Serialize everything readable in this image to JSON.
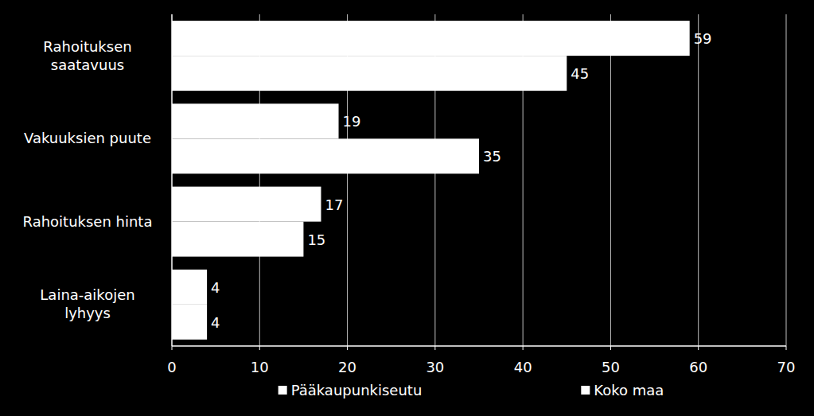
{
  "chart_data": {
    "type": "bar",
    "orientation": "horizontal",
    "categories": [
      "Rahoituksen\nsaatavuus",
      "Vakuuksien puute",
      "Rahoituksen hinta",
      "Laina-aikojen\nlyhyys"
    ],
    "series": [
      {
        "name": "Pääkaupunkiseutu",
        "color": "#ffffff",
        "values": [
          59,
          19,
          17,
          4
        ]
      },
      {
        "name": "Koko maa",
        "color": "#ffffff",
        "values": [
          45,
          35,
          15,
          4
        ]
      }
    ],
    "xlim": [
      0,
      70
    ],
    "xticks": [
      0,
      10,
      20,
      30,
      40,
      50,
      60,
      70
    ],
    "grid": true,
    "data_labels": true,
    "legend": "bottom"
  }
}
